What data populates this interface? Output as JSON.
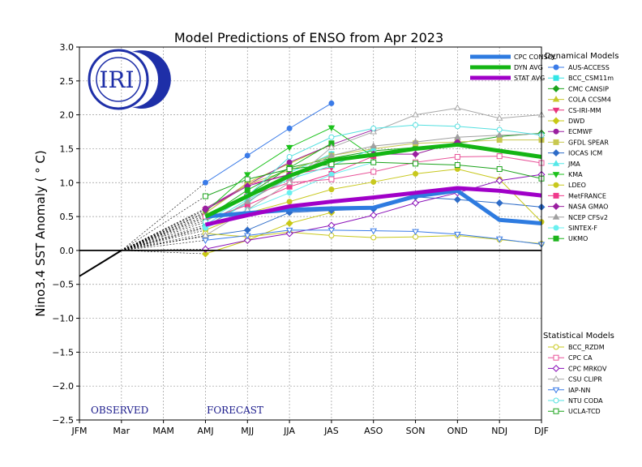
{
  "chart_data": {
    "type": "line",
    "title": "Model Predictions of ENSO from Apr 2023",
    "ylabel": "Nino3.4 SST Anomaly ( ° C)",
    "xlabel": "",
    "ylim": [
      -2.5,
      3.0
    ],
    "yticks": [
      "3.0",
      "2.5",
      "2.0",
      "1.5",
      "1.0",
      "0.5",
      "0.0",
      "−0.5",
      "−1.0",
      "−1.5",
      "−2.0",
      "−2.5"
    ],
    "grid": true,
    "categories": [
      "JFM",
      "Mar",
      "MAM",
      "AMJ",
      "MJJ",
      "JJA",
      "JAS",
      "ASO",
      "SON",
      "OND",
      "NDJ",
      "DJF"
    ],
    "logo_text": "IRI",
    "observed_label": "OBSERVED",
    "forecast_label": "FORECAST",
    "observed": {
      "x": [
        0,
        1
      ],
      "y": [
        -0.38,
        0.0
      ]
    },
    "avg_legend": [
      {
        "name": "CPC CONSOL",
        "color": "#2e7be0"
      },
      {
        "name": "DYN AVG",
        "color": "#14b514"
      },
      {
        "name": "STAT AVG",
        "color": "#a000c8"
      }
    ],
    "avg_series": [
      {
        "name": "CPC CONSOL",
        "color": "#2e7be0",
        "start": 3,
        "values": [
          0.5,
          0.55,
          0.6,
          0.62,
          0.63,
          0.8,
          0.88,
          0.45,
          0.4
        ]
      },
      {
        "name": "DYN AVG",
        "color": "#14b514",
        "start": 3,
        "values": [
          0.5,
          0.8,
          1.1,
          1.33,
          1.41,
          1.5,
          1.56,
          1.47,
          1.38
        ]
      },
      {
        "name": "STAT AVG",
        "color": "#a000c8",
        "start": 3,
        "values": [
          0.38,
          0.52,
          0.65,
          0.72,
          0.78,
          0.85,
          0.92,
          0.88,
          0.81
        ]
      }
    ],
    "dyn_heading": "Dynamical Models",
    "stat_heading": "Statistical Models",
    "dynamical": [
      {
        "name": "AUS-ACCESS",
        "color": "#3a7be8",
        "marker": "circle",
        "fill": true,
        "start": 3,
        "values": [
          1.0,
          1.4,
          1.8,
          2.17
        ]
      },
      {
        "name": "BCC_CSM11m",
        "color": "#33e6e6",
        "marker": "square",
        "fill": true,
        "start": 3,
        "values": [
          0.35,
          0.7,
          1.15,
          1.42
        ]
      },
      {
        "name": "CMC CANSIP",
        "color": "#1ca31c",
        "marker": "diamond",
        "fill": true,
        "start": 3,
        "values": [
          0.52,
          0.82,
          1.22,
          1.36,
          1.47,
          1.52,
          1.58,
          1.68,
          1.73
        ]
      },
      {
        "name": "COLA CCSM4",
        "color": "#c8c82a",
        "marker": "triangle-up",
        "fill": true,
        "start": 3,
        "values": [
          0.55,
          1.0,
          1.28,
          1.56
        ]
      },
      {
        "name": "CS-IRI-MM",
        "color": "#e8357e",
        "marker": "triangle-down",
        "fill": true,
        "start": 3,
        "values": [
          0.6,
          0.97,
          1.12,
          1.22
        ]
      },
      {
        "name": "DWD",
        "color": "#c8c814",
        "marker": "diamond",
        "fill": true,
        "start": 3,
        "values": [
          -0.05,
          0.15,
          0.4,
          0.56
        ]
      },
      {
        "name": "ECMWF",
        "color": "#9a1fa0",
        "marker": "circle",
        "fill": true,
        "start": 3,
        "values": [
          0.62,
          0.97,
          1.3,
          1.56,
          1.78
        ]
      },
      {
        "name": "GFDL SPEAR",
        "color": "#c8c850",
        "marker": "square",
        "fill": true,
        "start": 3,
        "values": [
          0.55,
          0.98,
          1.18,
          1.4,
          1.5,
          1.58,
          1.6,
          1.63,
          1.63
        ]
      },
      {
        "name": "IOCAS ICM",
        "color": "#2e6cc8",
        "marker": "diamond",
        "fill": true,
        "start": 3,
        "values": [
          0.21,
          0.3,
          0.56,
          0.59,
          0.61,
          0.79,
          0.75,
          0.7,
          0.64
        ]
      },
      {
        "name": "JMA",
        "color": "#55e8e8",
        "marker": "triangle-up",
        "fill": true,
        "start": 3,
        "values": [
          0.38,
          0.75,
          1.05,
          1.25,
          1.5
        ]
      },
      {
        "name": "KMA",
        "color": "#1cc21c",
        "marker": "triangle-down",
        "fill": true,
        "start": 3,
        "values": [
          0.57,
          1.12,
          1.52,
          1.81,
          1.38
        ]
      },
      {
        "name": "LDEO",
        "color": "#c8c81e",
        "marker": "circle",
        "fill": true,
        "start": 3,
        "values": [
          0.3,
          0.55,
          0.72,
          0.9,
          1.01,
          1.13,
          1.2,
          1.05,
          0.42
        ]
      },
      {
        "name": "MetFRANCE",
        "color": "#f03a8c",
        "marker": "square",
        "fill": true,
        "start": 3,
        "values": [
          0.45,
          0.67,
          0.94,
          1.13,
          1.39
        ]
      },
      {
        "name": "NASA GMAO",
        "color": "#9a1fa0",
        "marker": "diamond",
        "fill": true,
        "start": 3,
        "values": [
          0.6,
          0.95,
          1.12,
          1.3,
          1.42,
          1.42,
          1.6
        ]
      },
      {
        "name": "NCEP CFSv2",
        "color": "#a0a0a0",
        "marker": "triangle-up",
        "fill": true,
        "start": 3,
        "values": [
          0.35,
          0.72,
          1.08,
          1.4,
          1.54,
          1.6,
          1.67,
          1.7,
          1.72
        ]
      },
      {
        "name": "SINTEX-F",
        "color": "#6af0f0",
        "marker": "circle",
        "fill": true,
        "start": 3,
        "values": [
          0.33,
          0.6,
          0.85,
          1.12,
          1.3
        ]
      },
      {
        "name": "UKMO",
        "color": "#1cb41c",
        "marker": "square",
        "fill": true,
        "start": 3,
        "values": [
          0.48,
          0.89,
          1.22,
          1.58
        ]
      }
    ],
    "statistical": [
      {
        "name": "BCC_RZDM",
        "color": "#c8c81e",
        "marker": "circle",
        "fill": false,
        "start": 3,
        "values": [
          0.25,
          0.2,
          0.27,
          0.22,
          0.19,
          0.2,
          0.22,
          0.16,
          0.1
        ]
      },
      {
        "name": "CPC CA",
        "color": "#e8559a",
        "marker": "square",
        "fill": false,
        "start": 3,
        "values": [
          0.5,
          0.8,
          1.0,
          1.05,
          1.16,
          1.3,
          1.38,
          1.39,
          1.29
        ]
      },
      {
        "name": "CPC MRKOV",
        "color": "#8a10b8",
        "marker": "diamond",
        "fill": false,
        "start": 3,
        "values": [
          0.02,
          0.15,
          0.25,
          0.37,
          0.52,
          0.7,
          0.85,
          1.03,
          1.12
        ]
      },
      {
        "name": "CSU CLIPR",
        "color": "#a8a8a8",
        "marker": "triangle-up",
        "fill": false,
        "start": 3,
        "values": [
          0.22,
          0.6,
          1.0,
          1.52,
          1.75,
          2.0,
          2.1,
          1.95,
          2.0
        ]
      },
      {
        "name": "IAP-NN",
        "color": "#3a7be8",
        "marker": "triangle-down",
        "fill": false,
        "start": 3,
        "values": [
          0.15,
          0.22,
          0.3,
          0.3,
          0.29,
          0.28,
          0.24,
          0.17,
          0.09
        ]
      },
      {
        "name": "NTU CODA",
        "color": "#55e0e0",
        "marker": "circle",
        "fill": false,
        "start": 3,
        "values": [
          0.42,
          0.8,
          1.38,
          1.67,
          1.8,
          1.85,
          1.83,
          1.78,
          1.7
        ]
      },
      {
        "name": "UCLA-TCD",
        "color": "#1ca31c",
        "marker": "square",
        "fill": false,
        "start": 3,
        "values": [
          0.8,
          1.05,
          1.2,
          1.27,
          1.3,
          1.28,
          1.26,
          1.2,
          1.06
        ]
      }
    ]
  }
}
